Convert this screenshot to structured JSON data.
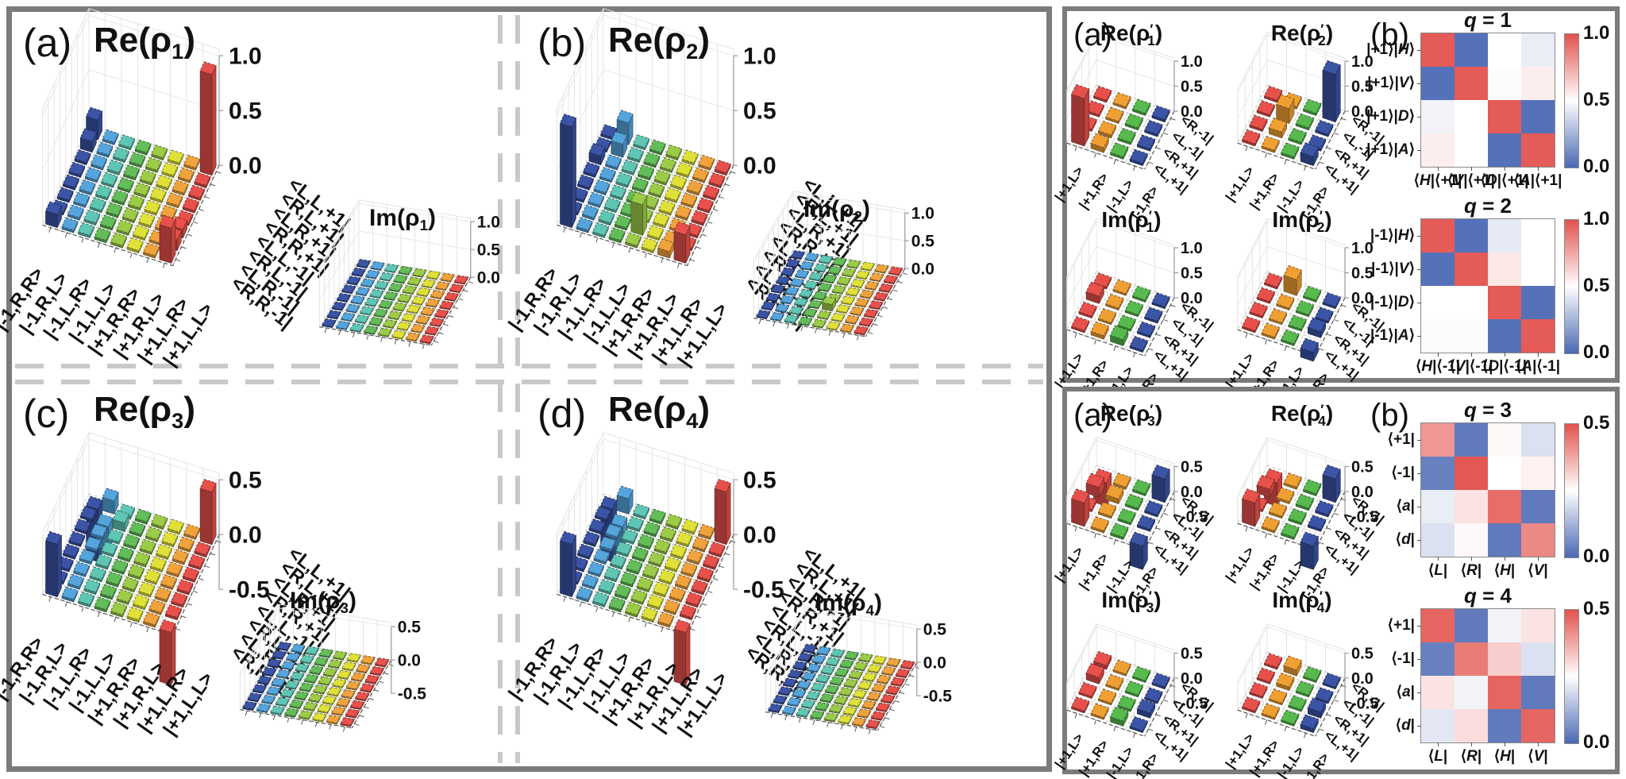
{
  "axes": {
    "kets8": [
      "|-1,R,R>",
      "|-1,R,L>",
      "|-1,L,R>",
      "|-1,L,L>",
      "|+1,R,R>",
      "|+1,R,L>",
      "|+1,L,R>",
      "|+1,L,L>"
    ],
    "bras8": [
      "<L,L,+1|",
      "<R,L,+1|",
      "<L,R,+1|",
      "<R,R,+1|",
      "<L,L,-1|",
      "<R,L,-1|",
      "<L,R,-1|",
      "<R,R,-1|"
    ],
    "kets4": [
      "|+1,L>",
      "|+1,R>",
      "|-1,L>",
      "|-1,R>"
    ],
    "bras4": [
      "<R,-1|",
      "<L,-1|",
      "<R,+1|",
      "<L,+1|"
    ],
    "colors8": [
      "#3b54a5",
      "#55a4dc",
      "#5fc6b4",
      "#63bd59",
      "#9ccb47",
      "#dfe138",
      "#f0a33c",
      "#e8514b"
    ],
    "colors4": [
      "#e8514b",
      "#f0a033",
      "#57b94e",
      "#3b54a5"
    ]
  },
  "figure": {
    "left_box": {
      "panels": [
        {
          "label": "(a)"
        },
        {
          "label": "(b)"
        },
        {
          "label": "(c)"
        },
        {
          "label": "(d)"
        }
      ]
    },
    "right_boxes": [
      {
        "a_label": "(a)",
        "b_label": "(b)"
      },
      {
        "a_label": "(a)",
        "b_label": "(b)"
      }
    ]
  },
  "heatmap_scale": {
    "low": "#4a68b4",
    "mid": "#ffffff",
    "high": "#e2514c"
  },
  "chart_data": [
    {
      "id": "re_a",
      "type": "bar3d",
      "n": 8,
      "title": {
        "base": "Re(ρ",
        "sub": "1",
        "prime": false
      },
      "zt": [
        [
          1,
          "1.0"
        ],
        [
          0.5,
          "0.5"
        ],
        [
          0,
          "0.0"
        ]
      ],
      "base": 0.022,
      "xlabels_ref": "kets8",
      "ylabels_ref": "bras8",
      "colors_ref": "colors8",
      "bars": [
        {
          "x": 7,
          "y": 0,
          "v": 0.92
        },
        {
          "x": 0,
          "y": 0,
          "v": 0.18
        },
        {
          "x": 0,
          "y": 1,
          "v": 0.1
        },
        {
          "x": 0,
          "y": 7,
          "v": 0.12
        },
        {
          "x": 7,
          "y": 7,
          "v": 0.32
        },
        {
          "x": 7,
          "y": 6,
          "v": 0.1
        },
        {
          "x": 7,
          "y": 5,
          "v": 0.08
        }
      ]
    },
    {
      "id": "im_a",
      "type": "bar3d",
      "n": 8,
      "title": {
        "base": "Im(ρ",
        "sub": "1",
        "prime": false
      },
      "zt": [
        [
          1,
          "1.0"
        ],
        [
          0.5,
          "0.5"
        ],
        [
          0,
          "0.0"
        ]
      ],
      "base": 0.018,
      "xlabels_ref": null,
      "ylabels_ref": null,
      "colors_ref": "colors8",
      "bars": []
    },
    {
      "id": "re_b",
      "type": "bar3d",
      "n": 8,
      "title": {
        "base": "Re(ρ",
        "sub": "2",
        "prime": false
      },
      "zt": [
        [
          1,
          "1.0"
        ],
        [
          0.5,
          "0.5"
        ],
        [
          0,
          "0.0"
        ]
      ],
      "base": 0.022,
      "xlabels_ref": "kets8",
      "ylabels_ref": "bras8",
      "colors_ref": "colors8",
      "bars": [
        {
          "x": 0,
          "y": 7,
          "v": 0.92
        },
        {
          "x": 1,
          "y": 0,
          "v": 0.2
        },
        {
          "x": 1,
          "y": 1,
          "v": 0.12
        },
        {
          "x": 0,
          "y": 2,
          "v": 0.08
        },
        {
          "x": 4,
          "y": 6,
          "v": 0.28
        },
        {
          "x": 7,
          "y": 7,
          "v": 0.26
        },
        {
          "x": 6,
          "y": 7,
          "v": 0.06
        }
      ]
    },
    {
      "id": "im_b",
      "type": "bar3d",
      "n": 8,
      "title": {
        "base": "Im(ρ",
        "sub": "2",
        "prime": false
      },
      "zt": [
        [
          1,
          "1.0"
        ],
        [
          0.5,
          "0.5"
        ],
        [
          0,
          "0.0"
        ]
      ],
      "base": 0.018,
      "xlabels_ref": null,
      "ylabels_ref": null,
      "colors_ref": "colors8",
      "bars": [
        {
          "x": 4,
          "y": 5,
          "v": 0.12
        }
      ]
    },
    {
      "id": "re_c",
      "type": "bar3d",
      "n": 8,
      "title": {
        "base": "Re(ρ",
        "sub": "3",
        "prime": false
      },
      "zt": [
        [
          0.5,
          "0.5"
        ],
        [
          0,
          "0.0"
        ],
        [
          -0.5,
          "-0.5"
        ]
      ],
      "base": 0.022,
      "xlabels_ref": "kets8",
      "ylabels_ref": "bras8",
      "colors_ref": "colors8",
      "bars": [
        {
          "x": 0,
          "y": 7,
          "v": 0.48
        },
        {
          "x": 7,
          "y": 0,
          "v": 0.48
        },
        {
          "x": 0,
          "y": 0,
          "v": -0.48
        },
        {
          "x": 7,
          "y": 7,
          "v": -0.48
        },
        {
          "x": 1,
          "y": 0,
          "v": 0.12
        },
        {
          "x": 1,
          "y": 1,
          "v": -0.22
        },
        {
          "x": 2,
          "y": 1,
          "v": 0.08
        }
      ]
    },
    {
      "id": "im_c",
      "type": "bar3d",
      "n": 8,
      "title": {
        "base": "Im(ρ",
        "sub": "3",
        "prime": false
      },
      "zt": [
        [
          0.5,
          "0.5"
        ],
        [
          0,
          "0.0"
        ],
        [
          -0.5,
          "-0.5"
        ]
      ],
      "base": 0.018,
      "xlabels_ref": null,
      "ylabels_ref": null,
      "colors_ref": "colors8",
      "bars": []
    },
    {
      "id": "re_d",
      "type": "bar3d",
      "n": 8,
      "title": {
        "base": "Re(ρ",
        "sub": "4",
        "prime": false
      },
      "zt": [
        [
          0.5,
          "0.5"
        ],
        [
          0,
          "0.0"
        ],
        [
          -0.5,
          "-0.5"
        ]
      ],
      "base": 0.022,
      "xlabels_ref": "kets8",
      "ylabels_ref": "bras8",
      "colors_ref": "colors8",
      "bars": [
        {
          "x": 0,
          "y": 7,
          "v": 0.48
        },
        {
          "x": 7,
          "y": 0,
          "v": 0.48
        },
        {
          "x": 0,
          "y": 0,
          "v": -0.48
        },
        {
          "x": 7,
          "y": 7,
          "v": -0.48
        },
        {
          "x": 1,
          "y": 0,
          "v": 0.14
        },
        {
          "x": 1,
          "y": 1,
          "v": -0.2
        }
      ]
    },
    {
      "id": "im_d",
      "type": "bar3d",
      "n": 8,
      "title": {
        "base": "Im(ρ",
        "sub": "4",
        "prime": false
      },
      "zt": [
        [
          0.5,
          "0.5"
        ],
        [
          0,
          "0.0"
        ],
        [
          -0.5,
          "-0.5"
        ]
      ],
      "base": 0.018,
      "xlabels_ref": null,
      "ylabels_ref": null,
      "colors_ref": "colors8",
      "bars": []
    },
    {
      "id": "re_p1",
      "type": "bar3d",
      "n": 4,
      "title": {
        "base": "Re(ρ",
        "sub": "1",
        "prime": true
      },
      "zt": [
        [
          1,
          "1.0"
        ],
        [
          0.5,
          "0.5"
        ],
        [
          0,
          "0.0"
        ]
      ],
      "base": 0.045,
      "xlabels_ref": "kets4",
      "ylabels_ref": "bras4",
      "colors_ref": "colors4",
      "bars": [
        {
          "x": 0,
          "y": 3,
          "v": 0.95
        },
        {
          "x": 1,
          "y": 3,
          "v": 0.1
        },
        {
          "x": 1,
          "y": 2,
          "v": 0.06
        }
      ]
    },
    {
      "id": "re_p2",
      "type": "bar3d",
      "n": 4,
      "title": {
        "base": "Re(ρ",
        "sub": "2",
        "prime": true
      },
      "zt": [
        [
          1,
          "1.0"
        ],
        [
          0.5,
          "0.5"
        ],
        [
          0,
          "0.0"
        ]
      ],
      "base": 0.045,
      "xlabels_ref": "kets4",
      "ylabels_ref": "bras4",
      "colors_ref": "colors4",
      "bars": [
        {
          "x": 3,
          "y": 0,
          "v": 0.95
        },
        {
          "x": 1,
          "y": 1,
          "v": 0.3
        },
        {
          "x": 1,
          "y": 2,
          "v": 0.12
        },
        {
          "x": 3,
          "y": 3,
          "v": 0.18
        }
      ]
    },
    {
      "id": "im_p1",
      "type": "bar3d",
      "n": 4,
      "title": {
        "base": "Im(ρ",
        "sub": "1",
        "prime": true
      },
      "zt": [
        [
          1,
          "1.0"
        ],
        [
          0.5,
          "0.5"
        ],
        [
          0,
          "0.0"
        ]
      ],
      "base": 0.04,
      "xlabels_ref": "kets4",
      "ylabels_ref": "bras4",
      "colors_ref": "colors4",
      "bars": [
        {
          "x": 0,
          "y": 1,
          "v": 0.15
        },
        {
          "x": 2,
          "y": 3,
          "v": 0.12
        },
        {
          "x": 1,
          "y": 3,
          "v": 0.07
        }
      ]
    },
    {
      "id": "im_p2",
      "type": "bar3d",
      "n": 4,
      "title": {
        "base": "Im(ρ",
        "sub": "2",
        "prime": true
      },
      "zt": [
        [
          1,
          "1.0"
        ],
        [
          0.5,
          "0.5"
        ],
        [
          0,
          "0.0"
        ]
      ],
      "base": 0.04,
      "xlabels_ref": "kets4",
      "ylabels_ref": "bras4",
      "colors_ref": "colors4",
      "bars": [
        {
          "x": 1,
          "y": 0,
          "v": 0.32
        },
        {
          "x": 3,
          "y": 2,
          "v": 0.12
        },
        {
          "x": 3,
          "y": 3,
          "v": -0.18
        }
      ]
    },
    {
      "id": "re_p3",
      "type": "bar3d",
      "n": 4,
      "title": {
        "base": "Re(ρ",
        "sub": "3",
        "prime": true
      },
      "zt": [
        [
          0.5,
          "0.5"
        ],
        [
          0,
          "0.0"
        ],
        [
          -0.5,
          "-0.5"
        ]
      ],
      "base": 0.045,
      "xlabels_ref": "kets4",
      "ylabels_ref": "bras4",
      "colors_ref": "colors4",
      "bars": [
        {
          "x": 0,
          "y": 3,
          "v": 0.47
        },
        {
          "x": 3,
          "y": 0,
          "v": 0.47
        },
        {
          "x": 0,
          "y": 0,
          "v": -0.47
        },
        {
          "x": 3,
          "y": 3,
          "v": -0.47
        },
        {
          "x": 0,
          "y": 1,
          "v": 0.2
        },
        {
          "x": 1,
          "y": 1,
          "v": 0.1
        }
      ]
    },
    {
      "id": "re_p4",
      "type": "bar3d",
      "n": 4,
      "title": {
        "base": "Re(ρ",
        "sub": "4",
        "prime": true
      },
      "zt": [
        [
          0.5,
          "0.5"
        ],
        [
          0,
          "0.0"
        ],
        [
          -0.5,
          "-0.5"
        ]
      ],
      "base": 0.045,
      "xlabels_ref": "kets4",
      "ylabels_ref": "bras4",
      "colors_ref": "colors4",
      "bars": [
        {
          "x": 0,
          "y": 3,
          "v": 0.47
        },
        {
          "x": 3,
          "y": 0,
          "v": 0.47
        },
        {
          "x": 0,
          "y": 0,
          "v": -0.47
        },
        {
          "x": 3,
          "y": 3,
          "v": -0.47
        },
        {
          "x": 0,
          "y": 1,
          "v": 0.16
        }
      ]
    },
    {
      "id": "im_p3",
      "type": "bar3d",
      "n": 4,
      "title": {
        "base": "Im(ρ",
        "sub": "3",
        "prime": true
      },
      "zt": [
        [
          0.5,
          "0.5"
        ],
        [
          0,
          "0.0"
        ],
        [
          -0.5,
          "-0.5"
        ]
      ],
      "base": 0.04,
      "xlabels_ref": "kets4",
      "ylabels_ref": "bras4",
      "colors_ref": "colors4",
      "bars": [
        {
          "x": 0,
          "y": 1,
          "v": 0.13
        },
        {
          "x": 0,
          "y": 0,
          "v": 0.08
        },
        {
          "x": 2,
          "y": 3,
          "v": 0.1
        },
        {
          "x": 3,
          "y": 2,
          "v": 0.1
        }
      ]
    },
    {
      "id": "im_p4",
      "type": "bar3d",
      "n": 4,
      "title": {
        "base": "Im(ρ",
        "sub": "4",
        "prime": true
      },
      "zt": [
        [
          0.5,
          "0.5"
        ],
        [
          0,
          "0.0"
        ],
        [
          -0.5,
          "-0.5"
        ]
      ],
      "base": 0.04,
      "xlabels_ref": "kets4",
      "ylabels_ref": "bras4",
      "colors_ref": "colors4",
      "bars": [
        {
          "x": 1,
          "y": 0,
          "v": 0.12
        },
        {
          "x": 3,
          "y": 2,
          "v": 0.12
        },
        {
          "x": 3,
          "y": 3,
          "v": 0.08
        },
        {
          "x": 1,
          "y": 1,
          "v": 0.07
        }
      ]
    },
    {
      "id": "q1",
      "type": "heatmap",
      "title": "*q* = 1",
      "rows": [
        "|+1⟩|*H*⟩",
        "|+1⟩|*V*⟩",
        "|+1⟩|*D*⟩",
        "|+1⟩|*A*⟩"
      ],
      "cols": [
        "⟨*H*|⟨+1|",
        "⟨*V*|⟨+1|",
        "⟨*D*|⟨+1|",
        "⟨*A*|⟨+1|"
      ],
      "vmin": 0,
      "vmax": 1,
      "cbar": [
        "1.0",
        "0.5",
        "0.0"
      ],
      "values": [
        [
          0.97,
          0.03,
          0.5,
          0.44
        ],
        [
          0.03,
          0.97,
          0.51,
          0.55
        ],
        [
          0.46,
          0.5,
          0.97,
          0.03
        ],
        [
          0.55,
          0.5,
          0.03,
          0.97
        ]
      ]
    },
    {
      "id": "q2",
      "type": "heatmap",
      "title": "*q* = 2",
      "rows": [
        "|-1⟩|*H*⟩",
        "|-1⟩|*V*⟩",
        "|-1⟩|*D*⟩",
        "|-1⟩|*A*⟩"
      ],
      "cols": [
        "⟨*H*|⟨-1|",
        "⟨*V*|⟨-1|",
        "⟨*D*|⟨-1|",
        "⟨*A*|⟨-1|"
      ],
      "vmin": 0,
      "vmax": 1,
      "cbar": [
        "1.0",
        "0.5",
        "0.0"
      ],
      "values": [
        [
          0.97,
          0.03,
          0.43,
          0.5
        ],
        [
          0.03,
          0.97,
          0.57,
          0.5
        ],
        [
          0.5,
          0.5,
          0.97,
          0.03
        ],
        [
          0.51,
          0.51,
          0.03,
          0.97
        ]
      ]
    },
    {
      "id": "q3",
      "type": "heatmap",
      "title": "*q* = 3",
      "rows": [
        "⟨+1|",
        "⟨-1|",
        "⟨*a*|",
        "⟨*d*|"
      ],
      "cols": [
        "⟨*L*|",
        "⟨*R*|",
        "⟨*H*|",
        "⟨*V*|"
      ],
      "vmin": 0,
      "vmax": 0.5,
      "cbar": [
        "0.5",
        "0.0"
      ],
      "values": [
        [
          0.4,
          0.03,
          0.26,
          0.2
        ],
        [
          0.04,
          0.49,
          0.25,
          0.27
        ],
        [
          0.22,
          0.29,
          0.46,
          0.03
        ],
        [
          0.2,
          0.26,
          0.03,
          0.42
        ]
      ]
    },
    {
      "id": "q4",
      "type": "heatmap",
      "title": "*q* = 4",
      "rows": [
        "⟨+1|",
        "⟨-1|",
        "⟨*a*|",
        "⟨*d*|"
      ],
      "cols": [
        "⟨*L*|",
        "⟨*R*|",
        "⟨*H*|",
        "⟨*V*|"
      ],
      "vmin": 0,
      "vmax": 0.5,
      "cbar": [
        "0.5",
        "0.0"
      ],
      "values": [
        [
          0.47,
          0.03,
          0.23,
          0.29
        ],
        [
          0.04,
          0.44,
          0.32,
          0.2
        ],
        [
          0.29,
          0.23,
          0.47,
          0.03
        ],
        [
          0.21,
          0.3,
          0.03,
          0.47
        ]
      ]
    }
  ]
}
